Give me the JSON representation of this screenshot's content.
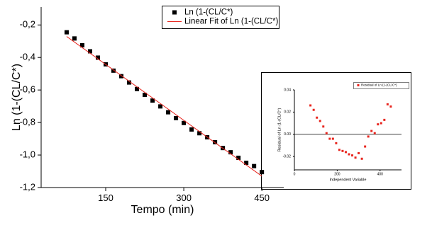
{
  "chart_data": [
    {
      "type": "scatter",
      "x_label": "Tempo (min)",
      "y_label": "Ln (1-(CL/C*)",
      "xlim": [
        26,
        492
      ],
      "ylim": [
        -1.2,
        -0.09
      ],
      "xticks": [
        150,
        300,
        450
      ],
      "yticks": [
        {
          "value": -1.2,
          "label": "-1,2"
        },
        {
          "value": -1.0,
          "label": "-1,0"
        },
        {
          "value": -0.8,
          "label": "-0,8"
        },
        {
          "value": -0.6,
          "label": "-0,6"
        },
        {
          "value": -0.4,
          "label": "-0,4"
        },
        {
          "value": -0.2,
          "label": "-0,2"
        }
      ],
      "legend": "top-right",
      "series": [
        {
          "name": "Ln (1-(CL/C*)",
          "type": "scatter",
          "color": "#000000",
          "x": [
            75,
            90,
            105,
            120,
            135,
            150,
            165,
            180,
            195,
            210,
            225,
            240,
            255,
            270,
            285,
            300,
            315,
            330,
            345,
            360,
            375,
            390,
            405,
            420,
            435,
            450
          ],
          "values": [
            -0.245,
            -0.283,
            -0.325,
            -0.362,
            -0.401,
            -0.442,
            -0.481,
            -0.515,
            -0.554,
            -0.594,
            -0.63,
            -0.665,
            -0.701,
            -0.737,
            -0.773,
            -0.803,
            -0.843,
            -0.866,
            -0.891,
            -0.921,
            -0.957,
            -0.983,
            -1.017,
            -1.048,
            -1.068,
            -1.105
          ]
        },
        {
          "name": "Linear Fit of Ln (1-(CL/C*)",
          "type": "line",
          "color": "#e8261f",
          "x": [
            75,
            450
          ],
          "values": [
            -0.271,
            -1.13
          ]
        }
      ]
    },
    {
      "type": "scatter",
      "x_label": "Independent Variable",
      "y_label": "Residual of Ln (1-(CL/C*)",
      "xlim": [
        0,
        500
      ],
      "ylim": [
        -0.032,
        0.04
      ],
      "xticks": [
        0,
        200,
        400
      ],
      "yticks": [
        -0.02,
        {
          "value": 0,
          "label": "0.00"
        },
        0.02,
        0.04
      ],
      "zero_line": true,
      "legend": "top-right",
      "series": [
        {
          "name": "Residual of Ln (1-(CL/C*)",
          "type": "scatter",
          "color": "#e8261f",
          "x": [
            75,
            90,
            105,
            120,
            135,
            150,
            165,
            180,
            195,
            210,
            225,
            240,
            255,
            270,
            285,
            300,
            315,
            330,
            345,
            360,
            375,
            390,
            405,
            420,
            435,
            450
          ],
          "values": [
            0.026,
            0.022,
            0.015,
            0.012,
            0.007,
            0.001,
            -0.004,
            -0.004,
            -0.008,
            -0.014,
            -0.015,
            -0.016,
            -0.018,
            -0.019,
            -0.021,
            -0.017,
            -0.022,
            -0.011,
            -0.002,
            0.003,
            0.001,
            0.009,
            0.01,
            0.013,
            0.027,
            0.025
          ]
        }
      ]
    }
  ]
}
